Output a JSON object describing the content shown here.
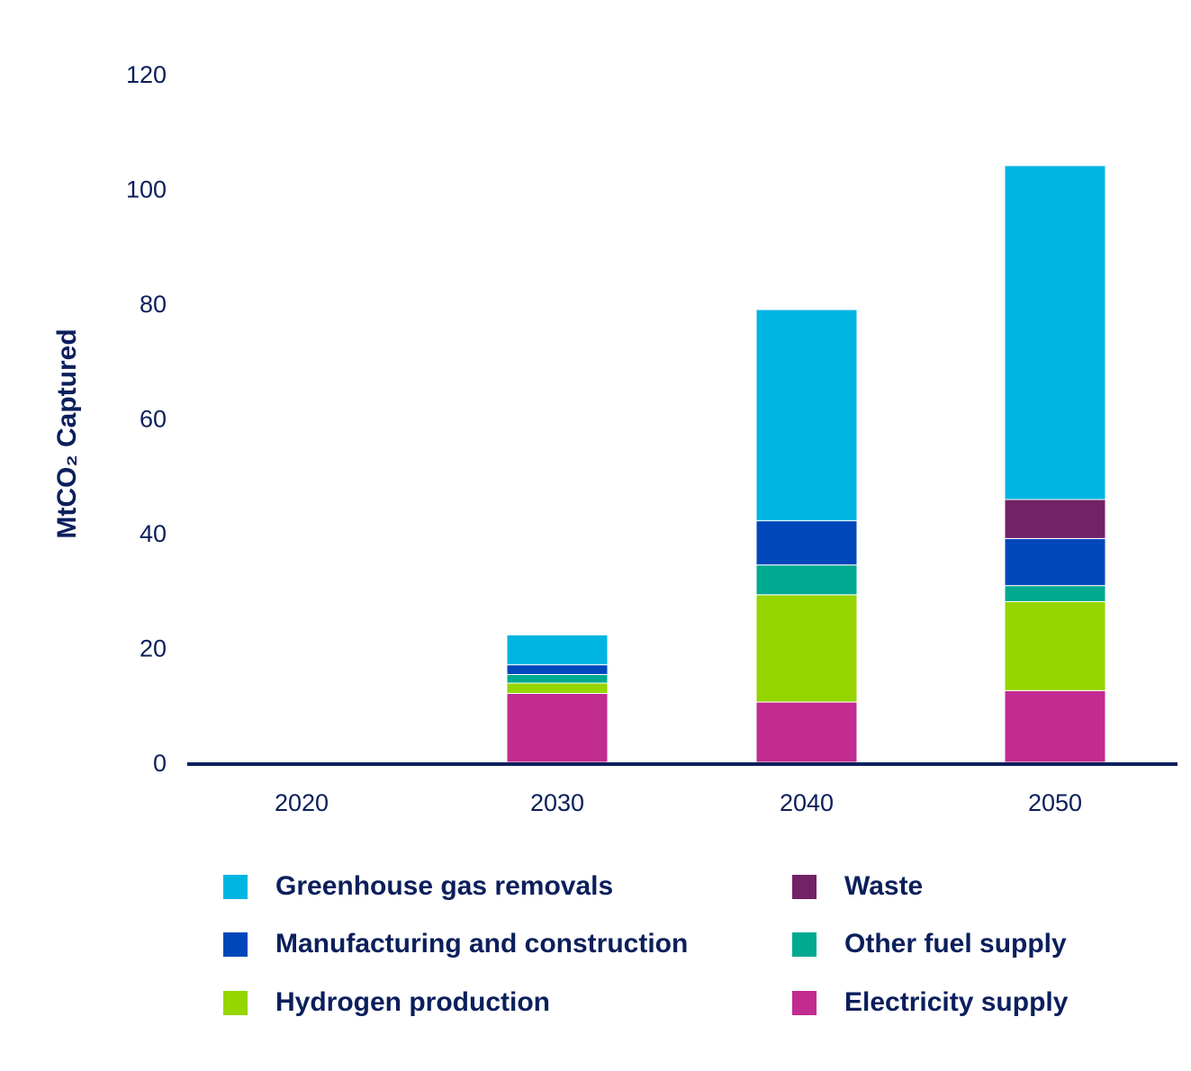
{
  "chart_data": {
    "type": "bar",
    "stacked": true,
    "categories": [
      "2020",
      "2030",
      "2040",
      "2050"
    ],
    "ylabel": "MtCO₂ Captured",
    "ylim": [
      0,
      120
    ],
    "yticks": [
      "0",
      "20",
      "40",
      "60",
      "80",
      "100",
      "120"
    ],
    "grid": false,
    "legend_position": "bottom",
    "series": [
      {
        "name": "Electricity supply",
        "color": "#c22b8f",
        "values": [
          0,
          12,
          10.5,
          12.5
        ]
      },
      {
        "name": "Hydrogen production",
        "color": "#95d500",
        "values": [
          0,
          1.8,
          18.7,
          15.5
        ]
      },
      {
        "name": "Other fuel supply",
        "color": "#00a98f",
        "values": [
          0,
          1.5,
          5.2,
          2.8
        ]
      },
      {
        "name": "Manufacturing and construction",
        "color": "#0047bb",
        "values": [
          0,
          1.7,
          7.7,
          8.2
        ]
      },
      {
        "name": "Waste",
        "color": "#722267",
        "values": [
          0,
          0,
          0,
          6.8
        ]
      },
      {
        "name": "Greenhouse gas removals",
        "color": "#00b5e2",
        "values": [
          0,
          5.2,
          36.8,
          58.2
        ]
      }
    ],
    "legend_order": [
      "Greenhouse gas removals",
      "Waste",
      "Manufacturing and construction",
      "Other fuel supply",
      "Hydrogen production",
      "Electricity supply"
    ]
  }
}
